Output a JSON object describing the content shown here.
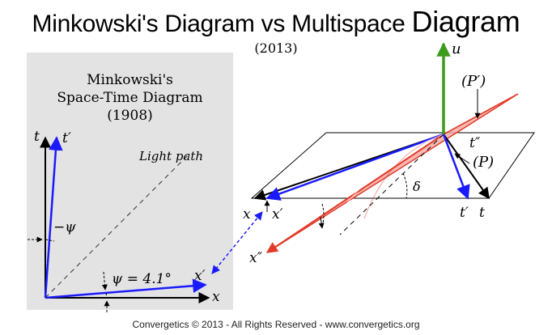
{
  "title_main": "Minkowski's Diagram vs Multispace",
  "title_last": "Diagram",
  "year": "(2013)",
  "left_panel": {
    "title_line1": "Minkowski's",
    "title_line2": "Space-Time Diagram",
    "title_line3": "(1908)",
    "label_t": "t",
    "label_t_prime": "t′",
    "label_light_path": "Light path",
    "label_minus_psi": "−ψ",
    "label_psi_eq": "ψ = 4.1°",
    "label_x_prime": "x′",
    "label_x": "x"
  },
  "right_panel": {
    "label_u": "u",
    "label_P_prime": "(P′)",
    "label_t_double_prime": "t″",
    "label_P": "(P)",
    "label_delta": "δ",
    "label_x": "x",
    "label_x_prime": "x′",
    "label_t_prime": "t′",
    "label_t": "t",
    "label_x_double_prime": "x″"
  },
  "colors": {
    "panel_bg": "#e3e3e3",
    "prime_axes": "#1a1aff",
    "u_axis": "#3c9a1c",
    "x_double_prime_plane": "#e23a2a",
    "plane_fill": "#f4a9a0"
  },
  "footer": "Convergetics © 2013 - All Rights Reserved - www.convergetics.org"
}
